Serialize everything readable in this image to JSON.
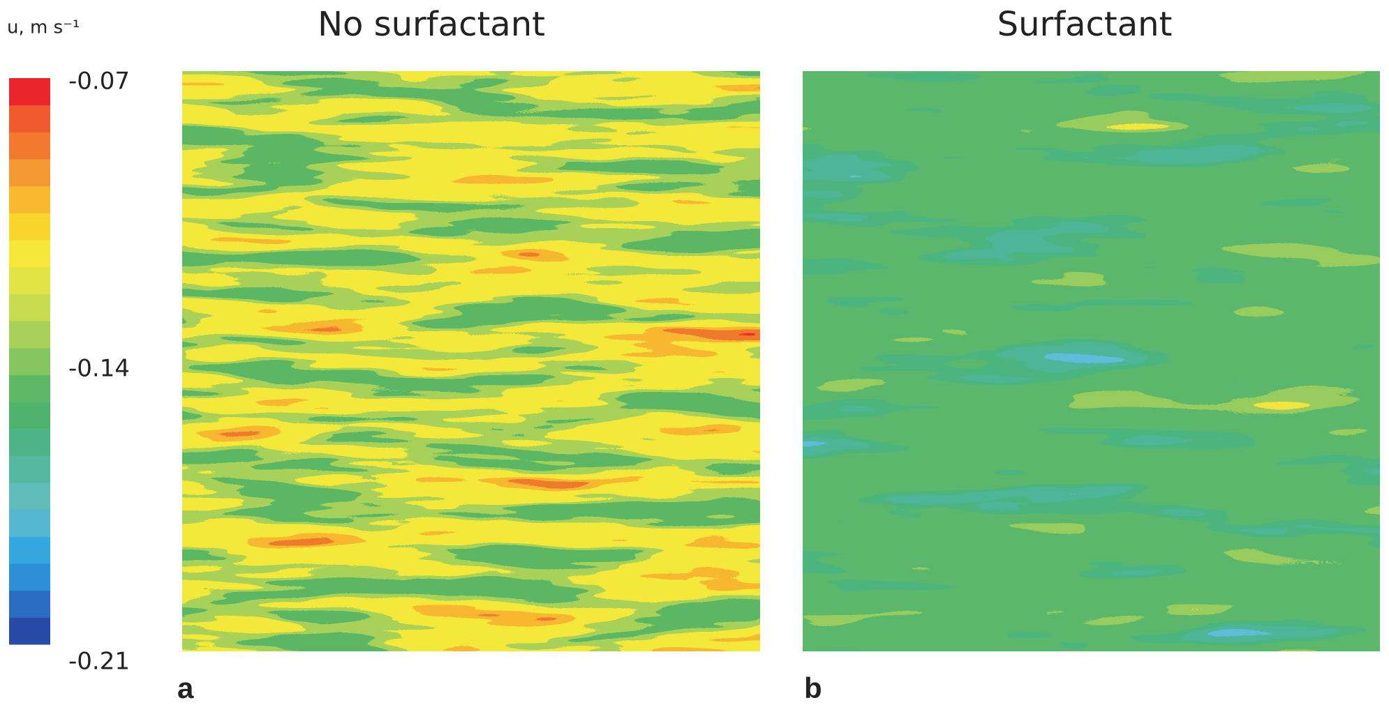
{
  "chart_data": {
    "type": "contour",
    "colorbar": {
      "label": "u, m s⁻¹",
      "vlim": [
        -0.21,
        -0.07
      ],
      "ticks": [
        -0.07,
        -0.14,
        -0.21
      ],
      "colors": [
        "#2a4aa8",
        "#2a6cc4",
        "#2d8fd8",
        "#35a8e0",
        "#55b8d0",
        "#60bcb8",
        "#55b8a0",
        "#4db488",
        "#4fb36e",
        "#5cb864",
        "#86c560",
        "#a8d15a",
        "#c8dc50",
        "#e2e346",
        "#f5e83a",
        "#f8d62e",
        "#f8b830",
        "#f59a32",
        "#f27a30",
        "#ee5a2e",
        "#e8262b"
      ]
    },
    "panels": [
      {
        "title": "No surfactant",
        "label": "a"
      },
      {
        "title": "Surfactant",
        "label": "b"
      }
    ]
  }
}
